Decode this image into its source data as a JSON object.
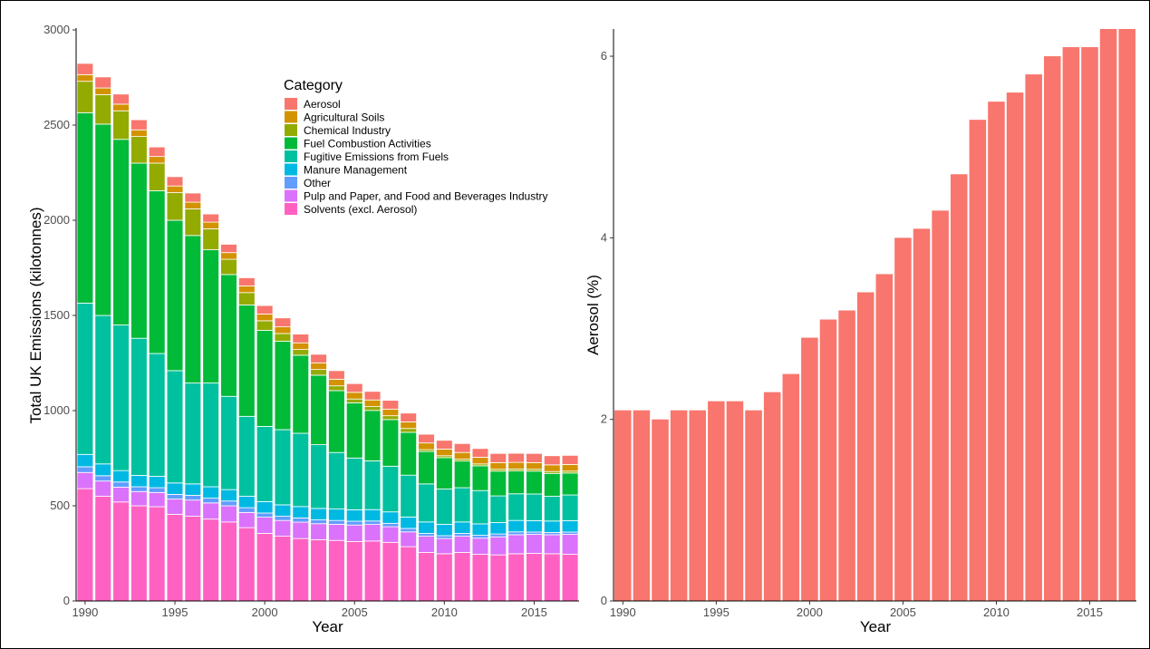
{
  "chart_data": [
    {
      "type": "bar",
      "stacked": true,
      "xlabel": "Year",
      "ylabel": "Total UK Emissions (kilotonnes)",
      "ylim": [
        0,
        3000
      ],
      "yticks": [
        0,
        500,
        1000,
        1500,
        2000,
        2500,
        3000
      ],
      "xticks": [
        1990,
        1995,
        2000,
        2005,
        2010,
        2015
      ],
      "legend_title": "Category",
      "legend_position": "top-center",
      "categories": [
        1990,
        1991,
        1992,
        1993,
        1994,
        1995,
        1996,
        1997,
        1998,
        1999,
        2000,
        2001,
        2002,
        2003,
        2004,
        2005,
        2006,
        2007,
        2008,
        2009,
        2010,
        2011,
        2012,
        2013,
        2014,
        2015,
        2016,
        2017
      ],
      "series": [
        {
          "name": "Solvents (excl. Aerosol)",
          "color": "#FF61C3",
          "values": [
            590,
            550,
            520,
            500,
            495,
            455,
            445,
            430,
            415,
            385,
            355,
            340,
            328,
            322,
            318,
            312,
            315,
            308,
            285,
            255,
            248,
            255,
            245,
            242,
            248,
            250,
            248,
            245
          ]
        },
        {
          "name": "Pulp and Paper, and Food and Beverages Industry",
          "color": "#DB72FB",
          "values": [
            85,
            80,
            78,
            75,
            75,
            80,
            85,
            85,
            85,
            80,
            85,
            83,
            86,
            84,
            85,
            87,
            87,
            82,
            78,
            85,
            80,
            85,
            85,
            95,
            100,
            100,
            100,
            105
          ]
        },
        {
          "name": "Other",
          "color": "#619CFF",
          "values": [
            30,
            28,
            27,
            25,
            25,
            25,
            25,
            25,
            25,
            25,
            22,
            22,
            22,
            20,
            20,
            20,
            18,
            18,
            18,
            15,
            15,
            15,
            15,
            15,
            15,
            12,
            12,
            12
          ]
        },
        {
          "name": "Manure Management",
          "color": "#00B9E3",
          "values": [
            65,
            62,
            60,
            60,
            60,
            60,
            60,
            60,
            60,
            60,
            60,
            60,
            60,
            60,
            60,
            60,
            60,
            60,
            60,
            60,
            60,
            60,
            60,
            60,
            60,
            60,
            60,
            60
          ]
        },
        {
          "name": "Fugitive Emissions from Fuels",
          "color": "#00C19F",
          "values": [
            795,
            780,
            765,
            720,
            645,
            590,
            530,
            545,
            490,
            420,
            395,
            395,
            385,
            335,
            297,
            272,
            256,
            240,
            220,
            200,
            185,
            180,
            175,
            140,
            140,
            140,
            130,
            135
          ]
        },
        {
          "name": "Fuel Combustion Activities",
          "color": "#00BA38",
          "values": [
            1000,
            1005,
            975,
            920,
            855,
            790,
            775,
            700,
            640,
            585,
            505,
            465,
            410,
            365,
            325,
            290,
            265,
            245,
            225,
            170,
            165,
            140,
            130,
            130,
            120,
            120,
            120,
            115
          ]
        },
        {
          "name": "Chemical Industry",
          "color": "#93AA00",
          "values": [
            165,
            155,
            150,
            140,
            145,
            145,
            140,
            110,
            80,
            65,
            50,
            40,
            30,
            30,
            25,
            20,
            20,
            20,
            20,
            10,
            10,
            10,
            10,
            10,
            10,
            10,
            10,
            10
          ]
        },
        {
          "name": "Agricultural Soils",
          "color": "#D39200",
          "values": [
            35,
            35,
            35,
            35,
            35,
            35,
            35,
            35,
            35,
            35,
            35,
            35,
            35,
            35,
            35,
            35,
            35,
            35,
            35,
            35,
            35,
            35,
            35,
            35,
            35,
            35,
            35,
            35
          ]
        },
        {
          "name": "Aerosol",
          "color": "#F8766D",
          "values": [
            59,
            58,
            53,
            53,
            50,
            49,
            48,
            43,
            44,
            43,
            45,
            47,
            46,
            45,
            45,
            46,
            45,
            46,
            46,
            46,
            46,
            47,
            46,
            48,
            48,
            48,
            48,
            48
          ]
        }
      ]
    },
    {
      "type": "bar",
      "xlabel": "Year",
      "ylabel": "Aerosol (%)",
      "ylim": [
        0,
        6.3
      ],
      "yticks": [
        0,
        2,
        4,
        6
      ],
      "xticks": [
        1990,
        1995,
        2000,
        2005,
        2010,
        2015
      ],
      "color": "#F8766D",
      "categories": [
        1990,
        1991,
        1992,
        1993,
        1994,
        1995,
        1996,
        1997,
        1998,
        1999,
        2000,
        2001,
        2002,
        2003,
        2004,
        2005,
        2006,
        2007,
        2008,
        2009,
        2010,
        2011,
        2012,
        2013,
        2014,
        2015,
        2016,
        2017
      ],
      "values": [
        2.1,
        2.1,
        2.0,
        2.1,
        2.1,
        2.2,
        2.2,
        2.1,
        2.3,
        2.5,
        2.9,
        3.1,
        3.2,
        3.4,
        3.6,
        4.0,
        4.1,
        4.3,
        4.7,
        5.3,
        5.5,
        5.6,
        5.8,
        6.0,
        6.1,
        6.1,
        6.3,
        6.3
      ]
    }
  ]
}
